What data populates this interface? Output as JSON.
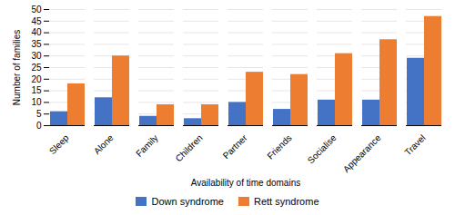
{
  "chart_data": {
    "type": "bar",
    "categories": [
      "Sleep",
      "Alone",
      "Family",
      "Children",
      "Partner",
      "Friends",
      "Socialise",
      "Appearance",
      "Travel"
    ],
    "series": [
      {
        "name": "Down syndrome",
        "color": "#4472C4",
        "values": [
          6,
          12,
          4,
          3,
          10,
          7,
          11,
          11,
          29
        ]
      },
      {
        "name": "Rett syndrome",
        "color": "#ED7D31",
        "values": [
          18,
          30,
          9,
          9,
          23,
          22,
          31,
          37,
          47
        ]
      }
    ],
    "xlabel": "Availability of time domains",
    "ylabel": "Number of families",
    "ylim": [
      0,
      50
    ],
    "yticks": [
      0,
      5,
      10,
      15,
      20,
      25,
      30,
      35,
      40,
      45,
      50
    ],
    "grid": true,
    "legend": "bottom"
  }
}
